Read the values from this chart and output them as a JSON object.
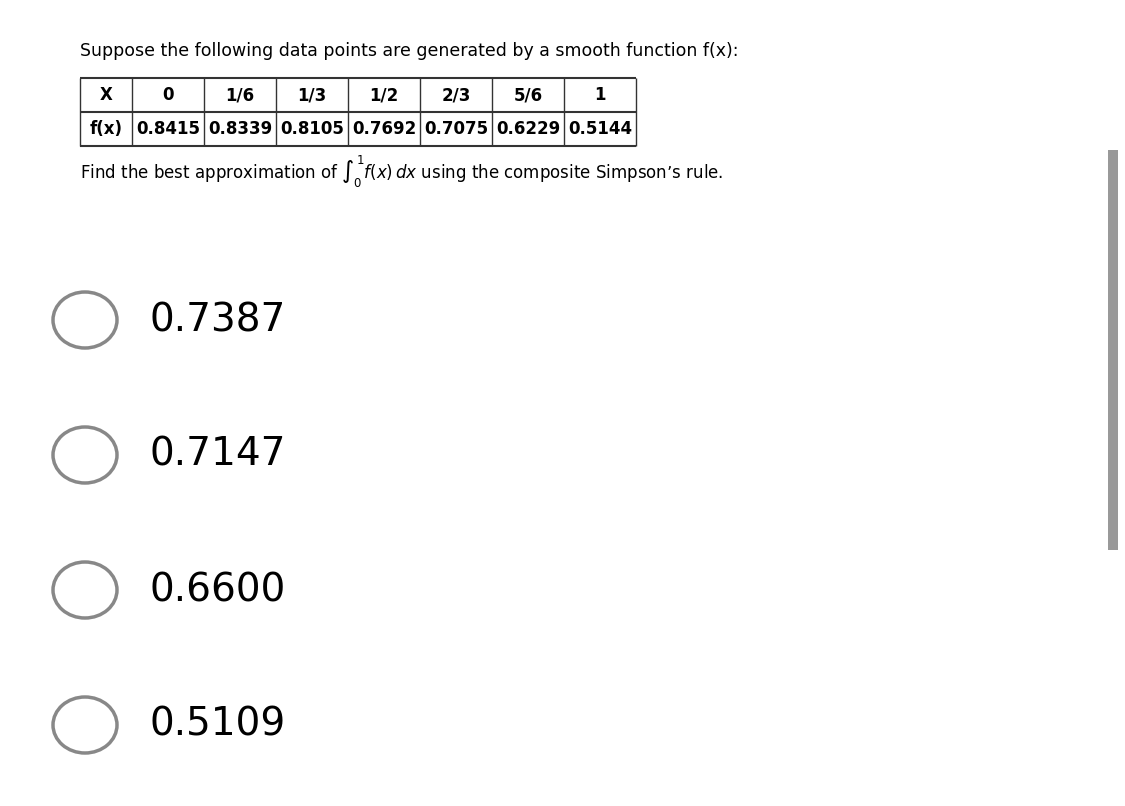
{
  "title": "Suppose the following data points are generated by a smooth function f(x):",
  "table_headers": [
    "X",
    "0",
    "1/6",
    "1/3",
    "1/2",
    "2/3",
    "5/6",
    "1"
  ],
  "table_row_label": "f(x)",
  "table_values": [
    "0.8415",
    "0.8339",
    "0.8105",
    "0.7692",
    "0.7075",
    "0.6229",
    "0.5144"
  ],
  "question_text": "Find the best approximation of $\\int_0^1 f(x)\\,dx$ using the composite Simpson’s rule.",
  "options": [
    "0.7387",
    "0.7147",
    "0.6600",
    "0.5109"
  ],
  "bg_color": "#ffffff",
  "text_color": "#000000",
  "title_fontsize": 12.5,
  "option_fontsize": 28,
  "question_fontsize": 12,
  "table_fontsize": 12,
  "circle_color": "#888888",
  "scrollbar_color": "#999999"
}
